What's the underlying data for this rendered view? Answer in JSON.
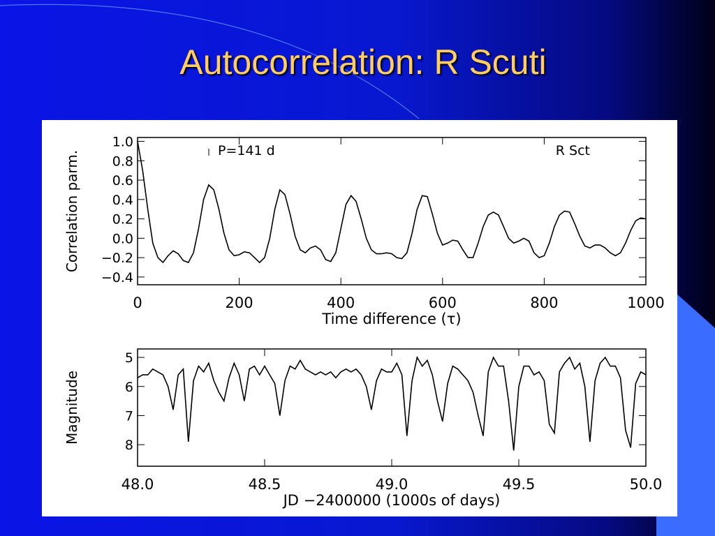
{
  "title": "Autocorrelation: R Scuti",
  "chart_data": [
    {
      "type": "line",
      "x_label": "Time difference (τ)",
      "y_label": "Correlation parm.",
      "annotations": [
        "P=141 d",
        "R Sct"
      ],
      "xlim": [
        0,
        1000
      ],
      "xticks": [
        0,
        200,
        400,
        600,
        800,
        1000
      ],
      "ylim": [
        -0.48,
        1.04
      ],
      "yticks": [
        {
          "value": 1,
          "label": "1.0"
        },
        0.8,
        0.6,
        0.4,
        0.2,
        {
          "value": 0,
          "label": "0.0"
        },
        {
          "value": -0.2,
          "label": "−0.2"
        },
        {
          "value": -0.4,
          "label": "−0.4"
        }
      ],
      "color": "#000000",
      "x": [
        0,
        10,
        20,
        30,
        40,
        50,
        60,
        70,
        80,
        90,
        100,
        110,
        120,
        130,
        140,
        150,
        160,
        170,
        180,
        190,
        200,
        210,
        220,
        230,
        240,
        250,
        260,
        270,
        280,
        290,
        300,
        310,
        320,
        330,
        340,
        350,
        360,
        370,
        380,
        390,
        400,
        410,
        420,
        430,
        440,
        450,
        460,
        470,
        480,
        490,
        500,
        510,
        520,
        530,
        540,
        550,
        560,
        570,
        580,
        590,
        600,
        610,
        620,
        630,
        640,
        650,
        660,
        670,
        680,
        690,
        700,
        710,
        720,
        730,
        740,
        750,
        760,
        770,
        780,
        790,
        800,
        810,
        820,
        830,
        840,
        850,
        860,
        870,
        880,
        890,
        900,
        910,
        920,
        930,
        940,
        950,
        960,
        970,
        980,
        990,
        1000
      ],
      "values": [
        1.0,
        0.7,
        0.3,
        -0.05,
        -0.2,
        -0.25,
        -0.18,
        -0.13,
        -0.16,
        -0.23,
        -0.25,
        -0.15,
        0.1,
        0.4,
        0.55,
        0.5,
        0.3,
        0.05,
        -0.12,
        -0.18,
        -0.17,
        -0.14,
        -0.15,
        -0.2,
        -0.25,
        -0.2,
        0.0,
        0.3,
        0.5,
        0.45,
        0.25,
        0.02,
        -0.12,
        -0.15,
        -0.1,
        -0.08,
        -0.12,
        -0.22,
        -0.24,
        -0.15,
        0.1,
        0.35,
        0.44,
        0.38,
        0.2,
        0.0,
        -0.12,
        -0.16,
        -0.16,
        -0.15,
        -0.16,
        -0.2,
        -0.21,
        -0.15,
        0.05,
        0.3,
        0.44,
        0.43,
        0.25,
        0.05,
        -0.07,
        -0.05,
        -0.02,
        -0.03,
        -0.12,
        -0.2,
        -0.2,
        -0.05,
        0.12,
        0.24,
        0.27,
        0.24,
        0.12,
        0.0,
        -0.05,
        -0.03,
        0.0,
        -0.03,
        -0.15,
        -0.2,
        -0.18,
        -0.05,
        0.12,
        0.24,
        0.28,
        0.27,
        0.15,
        0.02,
        -0.08,
        -0.1,
        -0.07,
        -0.07,
        -0.1,
        -0.15,
        -0.18,
        -0.15,
        -0.05,
        0.08,
        0.18,
        0.21,
        0.2
      ]
    },
    {
      "type": "line",
      "x_label": "JD −2400000 (1000s of days)",
      "y_label": "Magnitude",
      "xlim": [
        48,
        50
      ],
      "xticks": [
        {
          "value": 48,
          "label": "48.0"
        },
        {
          "value": 48.5,
          "label": "48.5"
        },
        {
          "value": 49,
          "label": "49.0"
        },
        {
          "value": 49.5,
          "label": "49.5"
        },
        {
          "value": 50,
          "label": "50.0"
        }
      ],
      "ylim": [
        8.74,
        4.71
      ],
      "yticks": [
        5,
        6,
        7,
        8
      ],
      "color": "#000000",
      "x": [
        48.0,
        48.02,
        48.04,
        48.06,
        48.08,
        48.1,
        48.12,
        48.14,
        48.16,
        48.18,
        48.2,
        48.22,
        48.24,
        48.26,
        48.28,
        48.3,
        48.32,
        48.34,
        48.36,
        48.38,
        48.4,
        48.42,
        48.44,
        48.46,
        48.48,
        48.5,
        48.52,
        48.54,
        48.56,
        48.58,
        48.6,
        48.62,
        48.64,
        48.66,
        48.68,
        48.7,
        48.72,
        48.74,
        48.76,
        48.78,
        48.8,
        48.82,
        48.84,
        48.86,
        48.88,
        48.9,
        48.92,
        48.94,
        48.96,
        48.98,
        49.0,
        49.02,
        49.04,
        49.06,
        49.08,
        49.1,
        49.12,
        49.14,
        49.16,
        49.18,
        49.2,
        49.22,
        49.24,
        49.26,
        49.28,
        49.3,
        49.32,
        49.34,
        49.36,
        49.38,
        49.4,
        49.42,
        49.44,
        49.46,
        49.48,
        49.5,
        49.52,
        49.54,
        49.56,
        49.58,
        49.6,
        49.62,
        49.64,
        49.66,
        49.68,
        49.7,
        49.72,
        49.74,
        49.76,
        49.78,
        49.8,
        49.82,
        49.84,
        49.86,
        49.88,
        49.9,
        49.92,
        49.94,
        49.96,
        49.98,
        50.0
      ],
      "values": [
        5.7,
        5.6,
        5.6,
        5.4,
        5.5,
        5.6,
        6.0,
        6.8,
        5.6,
        5.4,
        7.9,
        5.8,
        5.3,
        5.5,
        5.2,
        5.8,
        6.2,
        6.5,
        5.7,
        5.2,
        5.6,
        6.5,
        5.4,
        5.3,
        5.6,
        5.3,
        5.6,
        5.9,
        7.0,
        5.8,
        5.3,
        5.4,
        5.1,
        5.4,
        5.5,
        5.6,
        5.5,
        5.6,
        5.5,
        5.7,
        5.5,
        5.4,
        5.5,
        5.4,
        5.6,
        6.0,
        6.8,
        5.8,
        5.4,
        5.5,
        5.5,
        5.2,
        5.6,
        7.7,
        5.8,
        5.0,
        5.3,
        5.1,
        5.6,
        6.5,
        7.2,
        5.9,
        5.3,
        5.4,
        5.6,
        5.8,
        6.2,
        7.0,
        7.7,
        5.5,
        5.0,
        5.3,
        5.3,
        6.5,
        8.2,
        6.0,
        5.3,
        5.3,
        5.6,
        5.5,
        5.8,
        7.3,
        7.6,
        5.5,
        5.2,
        5.0,
        5.4,
        5.2,
        6.0,
        7.9,
        5.8,
        5.2,
        5.0,
        5.3,
        5.3,
        5.7,
        7.5,
        8.1,
        5.9,
        5.5,
        5.6
      ]
    }
  ]
}
